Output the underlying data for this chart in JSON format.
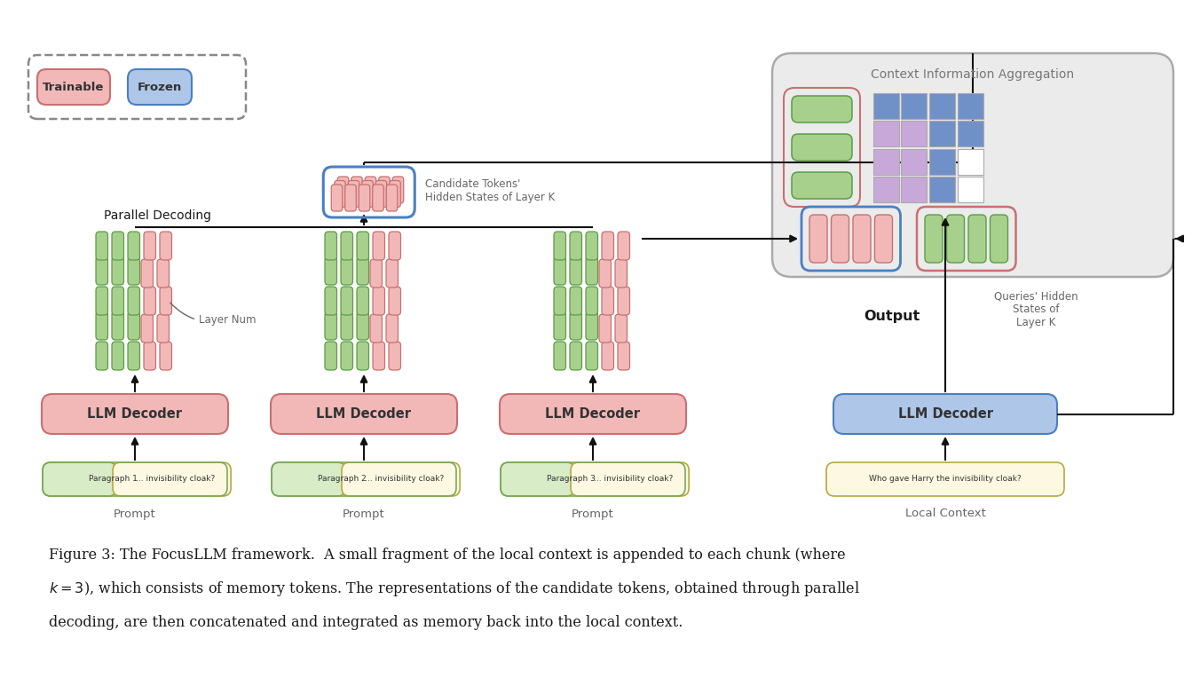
{
  "bg_color": "#ffffff",
  "pink_fill": "#f2b8b8",
  "pink_edge": "#c87070",
  "green_fill": "#a8d08d",
  "green_edge": "#5a9e44",
  "blue_fill": "#aec6e8",
  "blue_edge": "#4a7fc1",
  "yellow_fill": "#fdf8e1",
  "yellow_fill2": "#e8f0e0",
  "yellow_edge": "#b8a840",
  "green_prompt_fill": "#d8ecc8",
  "green_prompt_edge": "#7aaa5a",
  "purple_grid": "#c8a8d8",
  "blue_grid": "#7090c8",
  "white_grid": "#ffffff",
  "light_gray_cia": "#ebebeb",
  "gray_border_cia": "#aaaaaa",
  "text_dark": "#1a1a1a",
  "text_gray": "#666666",
  "arrow_color": "#111111",
  "trainable_label": "Trainable",
  "frozen_label": "Frozen",
  "parallel_decoding_label": "Parallel Decoding",
  "candidate_tokens_label": "Candidate Tokens'\nHidden States of Layer K",
  "output_label": "Output",
  "queries_hidden_label": "Queries' Hidden\nStates of\nLayer K",
  "context_agg_label": "Context Information Aggregation",
  "layer_num_label": "Layer Num",
  "prompts": [
    "Paragraph 1 ... invisibility cloak?",
    "Paragraph 2 ... invisibility cloak?",
    "Paragraph 3 ... invisibility cloak?",
    "Who gave Harry the invisibility cloak?"
  ],
  "prompt_labels": [
    "Prompt",
    "Prompt",
    "Prompt",
    "Local Context"
  ],
  "decoder_label": "LLM Decoder",
  "caption_line1": "Figure 3: The FocusLLM framework.  A small fragment of the local context is appended to each chunk (where",
  "caption_line2": "$k = 3$), which consists of memory tokens. The representations of the candidate tokens, obtained through parallel",
  "caption_line3": "decoding, are then concatenated and integrated as memory back into the local context."
}
